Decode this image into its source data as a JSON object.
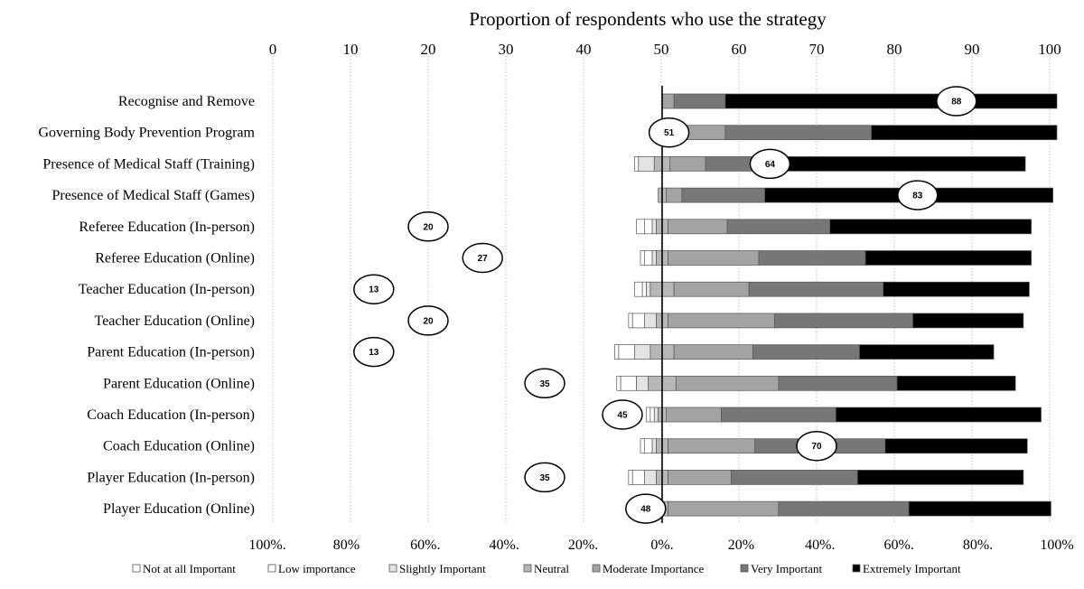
{
  "chart_data": {
    "type": "bar",
    "subtype": "diverging-stacked-bar-with-overlay",
    "title": "Proportion of respondents who use the strategy",
    "top_axis": {
      "range": [
        0,
        100
      ],
      "ticks": [
        0,
        10,
        20,
        30,
        40,
        50,
        60,
        70,
        80,
        90,
        100
      ],
      "tick_labels": [
        "0",
        "10",
        "20",
        "30",
        "40",
        "50",
        "60",
        "70",
        "80",
        "90",
        "100"
      ],
      "grid": true
    },
    "bottom_axis": {
      "range": [
        -100,
        100
      ],
      "ticks": [
        -100,
        -80,
        -60,
        -40,
        -20,
        0,
        20,
        40,
        60,
        80,
        100
      ],
      "tick_labels": [
        "100%.",
        "80%",
        "60%.",
        "40%.",
        "20%.",
        "0%.",
        "20%",
        "40%.",
        "60%.",
        "80%.",
        "100%"
      ]
    },
    "legend": {
      "position": "bottom",
      "items": [
        "Not at all Important",
        "Low importance",
        "Slightly Important",
        "Neutral",
        "Moderate Importance",
        "Very Important",
        "Extremely Important"
      ],
      "colors": [
        "#ffffff",
        "#ffffff",
        "#e3e3e3",
        "#b7b7b7",
        "#a3a3a3",
        "#777777",
        "#000000"
      ]
    },
    "categories": [
      "Recognise and Remove",
      "Governing Body Prevention Program",
      "Presence of Medical Staff (Training)",
      "Presence of Medical Staff (Games)",
      "Referee Education (In-person)",
      "Referee Education (Online)",
      "Teacher Education (In-person)",
      "Teacher Education (Online)",
      "Parent Education (In-person)",
      "Parent Education (Online)",
      "Coach Education (In-person)",
      "Coach Education (Online)",
      "Player Education (In-person)",
      "Player Education (Online)"
    ],
    "usage_percent": [
      88,
      51,
      64,
      83,
      20,
      27,
      13,
      20,
      13,
      35,
      45,
      70,
      35,
      48
    ],
    "series": [
      {
        "name": "Not at all Important",
        "values": [
          0,
          0,
          1,
          0,
          2,
          1,
          2,
          1,
          1,
          1,
          1,
          1,
          1,
          0
        ]
      },
      {
        "name": "Low importance",
        "values": [
          0,
          0,
          0,
          0,
          2,
          2,
          1,
          3,
          4,
          4,
          1,
          2,
          3,
          0
        ]
      },
      {
        "name": "Slightly Important",
        "values": [
          0,
          0,
          4,
          0,
          1,
          1,
          1,
          3,
          4,
          3,
          1,
          1,
          3,
          0
        ]
      },
      {
        "name": "Neutral",
        "values": [
          0,
          0,
          4,
          2,
          3,
          3,
          6,
          3,
          6,
          7,
          2,
          3,
          3,
          3
        ]
      },
      {
        "name": "Moderate Importance",
        "values": [
          3,
          16,
          9,
          4,
          15,
          23,
          19,
          27,
          20,
          26,
          14,
          22,
          16,
          28
        ]
      },
      {
        "name": "Very Important",
        "values": [
          13,
          37,
          20,
          21,
          26,
          27,
          34,
          35,
          27,
          30,
          29,
          33,
          32,
          33
        ]
      },
      {
        "name": "Extremely Important",
        "values": [
          84,
          47,
          61,
          73,
          51,
          42,
          37,
          28,
          34,
          30,
          52,
          36,
          42,
          36
        ]
      }
    ]
  }
}
